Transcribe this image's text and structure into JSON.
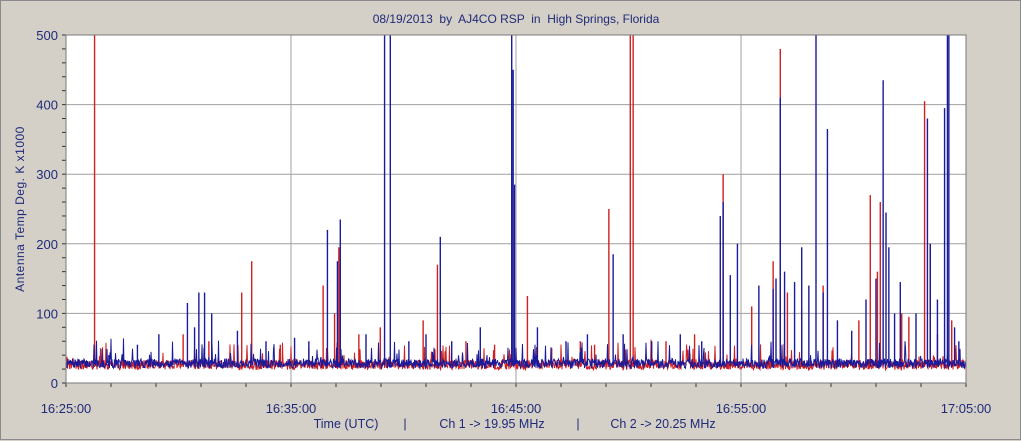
{
  "chart_data": {
    "type": "line",
    "title": "08/19/2013  by  AJ4CO RSP  in  High Springs, Florida",
    "ylabel": "Antenna Temp Deg. K x1000",
    "footer": {
      "xlabel": "Time (UTC)",
      "sep": "|",
      "ch1": "Ch 1 -> 19.95 MHz",
      "ch2": "Ch 2 -> 20.25 MHz"
    },
    "x_ticks": [
      "16:25:00",
      "16:35:00",
      "16:45:00",
      "16:55:00",
      "17:05:00"
    ],
    "x_range_minutes": [
      0,
      40
    ],
    "y_ticks": [
      0,
      100,
      200,
      300,
      400,
      500
    ],
    "ylim": [
      0,
      500
    ],
    "grid": true,
    "colors": {
      "background": "#d4d0c8",
      "plot_bg": "#ffffff",
      "grid": "#a0a0a0",
      "ch1": "#1a1a9a",
      "ch2": "#d02020",
      "text": "#1f2a78"
    },
    "series": [
      {
        "name": "Ch 1 -> 19.95 MHz",
        "color": "#1a1a9a",
        "baseline": 25,
        "spikes": [
          [
            3.0,
            40
          ],
          [
            5.0,
            55
          ],
          [
            6.5,
            70
          ],
          [
            8.5,
            115
          ],
          [
            9.0,
            80
          ],
          [
            9.3,
            130
          ],
          [
            9.7,
            130
          ],
          [
            10.2,
            100
          ],
          [
            12.0,
            75
          ],
          [
            14.0,
            60
          ],
          [
            16.0,
            65
          ],
          [
            17.0,
            60
          ],
          [
            18.3,
            220
          ],
          [
            19.0,
            175
          ],
          [
            19.2,
            235
          ],
          [
            21.0,
            70
          ],
          [
            22.3,
            500
          ],
          [
            22.7,
            500
          ],
          [
            24.0,
            60
          ],
          [
            25.2,
            70
          ],
          [
            26.2,
            210
          ],
          [
            27.0,
            60
          ],
          [
            29.0,
            80
          ],
          [
            31.2,
            500
          ],
          [
            31.3,
            450
          ],
          [
            31.4,
            285
          ],
          [
            33.0,
            80
          ],
          [
            35.0,
            60
          ],
          [
            36.5,
            70
          ],
          [
            38.3,
            185
          ],
          [
            39.0,
            70
          ],
          [
            41.0,
            60
          ],
          [
            43.0,
            70
          ],
          [
            44.5,
            60
          ],
          [
            45.8,
            240
          ],
          [
            46.0,
            260
          ],
          [
            46.5,
            155
          ],
          [
            47.0,
            200
          ],
          [
            48.5,
            140
          ],
          [
            49.5,
            135
          ],
          [
            49.7,
            150
          ],
          [
            50.0,
            410
          ],
          [
            50.3,
            160
          ],
          [
            51.0,
            145
          ],
          [
            51.5,
            195
          ],
          [
            52.0,
            140
          ],
          [
            52.5,
            500
          ],
          [
            53.0,
            130
          ],
          [
            53.3,
            365
          ],
          [
            54.0,
            90
          ],
          [
            55.0,
            75
          ],
          [
            56.0,
            120
          ],
          [
            56.7,
            150
          ],
          [
            57.2,
            435
          ],
          [
            57.4,
            245
          ],
          [
            57.6,
            195
          ],
          [
            58.0,
            100
          ],
          [
            58.4,
            145
          ],
          [
            59.5,
            100
          ],
          [
            60.3,
            380
          ],
          [
            60.5,
            200
          ],
          [
            61.0,
            120
          ],
          [
            61.5,
            395
          ],
          [
            61.7,
            500
          ],
          [
            61.8,
            500
          ],
          [
            62.2,
            80
          ],
          [
            62.5,
            60
          ]
        ]
      },
      {
        "name": "Ch 2 -> 20.25 MHz",
        "color": "#d02020",
        "baseline": 23,
        "spikes": [
          [
            2.0,
            500
          ],
          [
            8.2,
            70
          ],
          [
            10.0,
            60
          ],
          [
            12.3,
            130
          ],
          [
            13.0,
            175
          ],
          [
            15.0,
            55
          ],
          [
            17.0,
            50
          ],
          [
            18.0,
            140
          ],
          [
            18.8,
            100
          ],
          [
            19.1,
            195
          ],
          [
            20.5,
            70
          ],
          [
            22.0,
            80
          ],
          [
            25.0,
            90
          ],
          [
            26.0,
            170
          ],
          [
            28.0,
            60
          ],
          [
            30.0,
            55
          ],
          [
            32.3,
            125
          ],
          [
            34.0,
            50
          ],
          [
            36.0,
            60
          ],
          [
            37.0,
            55
          ],
          [
            38.0,
            250
          ],
          [
            39.5,
            500
          ],
          [
            39.7,
            500
          ],
          [
            42.0,
            60
          ],
          [
            44.0,
            70
          ],
          [
            46.0,
            300
          ],
          [
            48.0,
            110
          ],
          [
            49.5,
            175
          ],
          [
            50.0,
            480
          ],
          [
            50.5,
            130
          ],
          [
            51.5,
            105
          ],
          [
            53.0,
            140
          ],
          [
            55.5,
            90
          ],
          [
            56.3,
            270
          ],
          [
            56.8,
            160
          ],
          [
            57.0,
            260
          ],
          [
            58.5,
            100
          ],
          [
            59.0,
            95
          ],
          [
            60.1,
            405
          ],
          [
            60.5,
            200
          ],
          [
            61.0,
            70
          ],
          [
            62.0,
            90
          ]
        ]
      }
    ]
  }
}
